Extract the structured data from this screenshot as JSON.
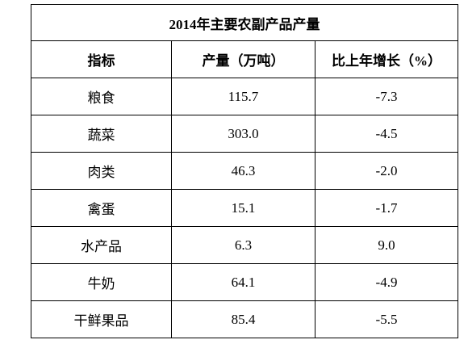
{
  "table": {
    "title": "2014年主要农副产品产量",
    "header": [
      "指标",
      "产量（万吨）",
      "比上年增长（%）"
    ],
    "rows": [
      [
        "粮食",
        "115.7",
        "-7.3"
      ],
      [
        "蔬菜",
        "303.0",
        "-4.5"
      ],
      [
        "肉类",
        "46.3",
        "-2.0"
      ],
      [
        "禽蛋",
        "15.1",
        "-1.7"
      ],
      [
        "水产品",
        "6.3",
        "9.0"
      ],
      [
        "牛奶",
        "64.1",
        "-4.9"
      ],
      [
        "干鲜果品",
        "85.4",
        "-5.5"
      ]
    ]
  }
}
